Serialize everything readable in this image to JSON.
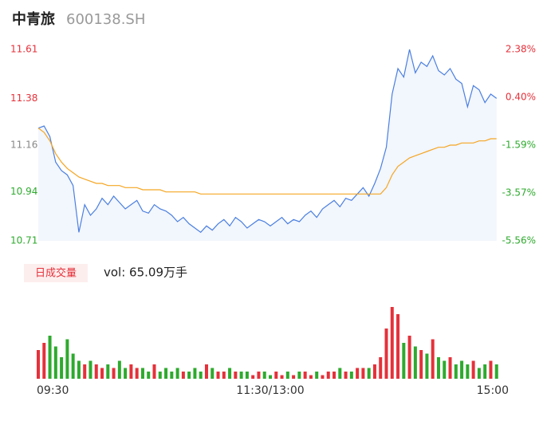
{
  "chart_data": {
    "type": "intraday",
    "title": "中青旅",
    "subtitle": "600138.SH",
    "volume_badge": "日成交量",
    "volume_text": "vol: 65.09万手",
    "xlim": [
      0,
      240
    ],
    "xticks": [
      {
        "value": 0,
        "label": "09:30"
      },
      {
        "value": 120,
        "label": "11:30/13:00"
      },
      {
        "value": 240,
        "label": "15:00"
      }
    ],
    "ylim": [
      10.71,
      11.61
    ],
    "yticks": [
      11.61,
      11.38,
      11.16,
      10.94,
      10.71
    ],
    "y2lim": [
      -5.56,
      2.38
    ],
    "y2ticks": [
      {
        "value": 2.38,
        "label": "2.38%"
      },
      {
        "value": 0.4,
        "label": "0.40%"
      },
      {
        "value": -1.59,
        "label": "-1.59%"
      },
      {
        "value": -3.57,
        "label": "-3.57%"
      },
      {
        "value": -5.56,
        "label": "-5.56%"
      }
    ],
    "up_color": "#e5313a",
    "down_color": "#2eaa2e",
    "flat_color": "#888888",
    "x": [
      0,
      3,
      6,
      9,
      12,
      15,
      18,
      21,
      24,
      27,
      30,
      33,
      36,
      39,
      42,
      45,
      48,
      51,
      54,
      57,
      60,
      63,
      66,
      69,
      72,
      75,
      78,
      81,
      84,
      87,
      90,
      93,
      96,
      99,
      102,
      105,
      108,
      111,
      114,
      117,
      120,
      123,
      126,
      129,
      132,
      135,
      138,
      141,
      144,
      147,
      150,
      153,
      156,
      159,
      162,
      165,
      168,
      171,
      174,
      177,
      180,
      183,
      186,
      189,
      192,
      195,
      198,
      201,
      204,
      207,
      210,
      213,
      216,
      219,
      222,
      225,
      228,
      231,
      234,
      237
    ],
    "series": [
      {
        "name": "price",
        "color": "#4a7fe0",
        "values": [
          11.24,
          11.25,
          11.2,
          11.08,
          11.04,
          11.02,
          10.97,
          10.75,
          10.88,
          10.83,
          10.86,
          10.91,
          10.88,
          10.92,
          10.89,
          10.86,
          10.88,
          10.9,
          10.85,
          10.84,
          10.88,
          10.86,
          10.85,
          10.83,
          10.8,
          10.82,
          10.79,
          10.77,
          10.75,
          10.78,
          10.76,
          10.79,
          10.81,
          10.78,
          10.82,
          10.8,
          10.77,
          10.79,
          10.81,
          10.8,
          10.78,
          10.8,
          10.82,
          10.79,
          10.81,
          10.8,
          10.83,
          10.85,
          10.82,
          10.86,
          10.88,
          10.9,
          10.87,
          10.91,
          10.9,
          10.93,
          10.96,
          10.92,
          10.98,
          11.05,
          11.15,
          11.4,
          11.52,
          11.48,
          11.61,
          11.5,
          11.55,
          11.53,
          11.58,
          11.51,
          11.49,
          11.52,
          11.47,
          11.45,
          11.34,
          11.44,
          11.42,
          11.36,
          11.4,
          11.38
        ]
      },
      {
        "name": "average",
        "color": "#f5a623",
        "values": [
          11.24,
          11.22,
          11.18,
          11.12,
          11.08,
          11.05,
          11.03,
          11.01,
          11.0,
          10.99,
          10.98,
          10.98,
          10.97,
          10.97,
          10.97,
          10.96,
          10.96,
          10.96,
          10.95,
          10.95,
          10.95,
          10.95,
          10.94,
          10.94,
          10.94,
          10.94,
          10.94,
          10.94,
          10.93,
          10.93,
          10.93,
          10.93,
          10.93,
          10.93,
          10.93,
          10.93,
          10.93,
          10.93,
          10.93,
          10.93,
          10.93,
          10.93,
          10.93,
          10.93,
          10.93,
          10.93,
          10.93,
          10.93,
          10.93,
          10.93,
          10.93,
          10.93,
          10.93,
          10.93,
          10.93,
          10.93,
          10.93,
          10.93,
          10.93,
          10.93,
          10.96,
          11.02,
          11.06,
          11.08,
          11.1,
          11.11,
          11.12,
          11.13,
          11.14,
          11.15,
          11.15,
          11.16,
          11.16,
          11.17,
          11.17,
          11.17,
          11.18,
          11.18,
          11.19,
          11.19
        ]
      }
    ],
    "volume": [
      8,
      10,
      12,
      9,
      6,
      11,
      7,
      5,
      4,
      5,
      4,
      3,
      4,
      3,
      5,
      3,
      4,
      3,
      3,
      2,
      4,
      2,
      3,
      2,
      3,
      2,
      2,
      3,
      2,
      4,
      3,
      2,
      2,
      3,
      2,
      2,
      2,
      1,
      2,
      2,
      1,
      2,
      1,
      2,
      1,
      2,
      2,
      1,
      2,
      1,
      2,
      2,
      3,
      2,
      2,
      3,
      3,
      3,
      4,
      6,
      14,
      20,
      18,
      10,
      12,
      9,
      8,
      7,
      11,
      6,
      5,
      6,
      4,
      5,
      4,
      5,
      3,
      4,
      5,
      4
    ]
  }
}
